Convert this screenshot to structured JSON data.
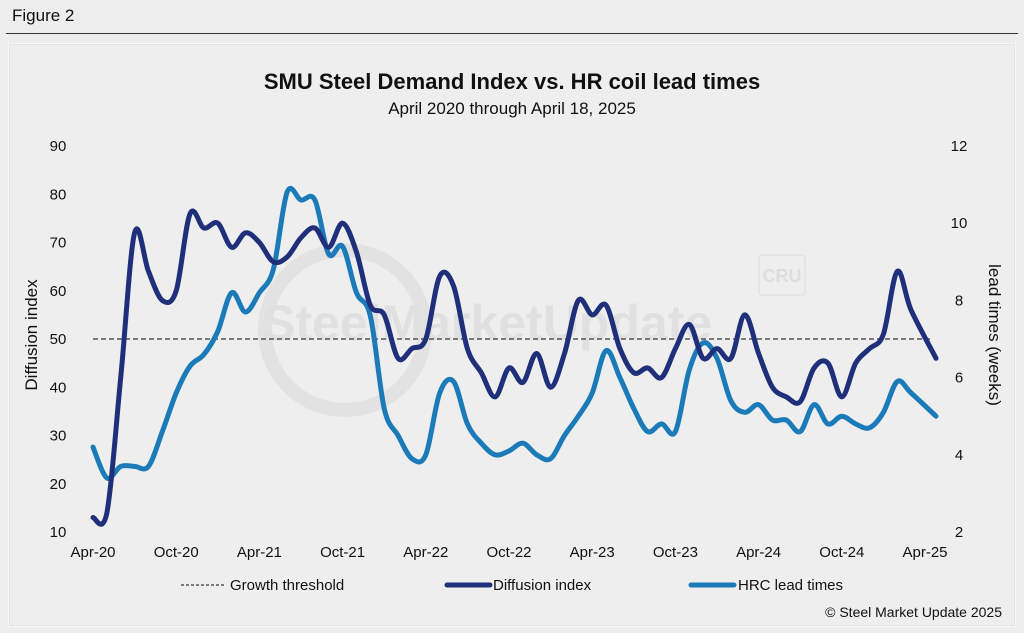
{
  "figure_label": "Figure 2",
  "copyright": "© Steel Market Update 2025",
  "watermark": {
    "text": "SteelMarketUpdate",
    "badge": "CRU"
  },
  "colors": {
    "diffusion": "#1f2f7a",
    "lead": "#1b7ab8",
    "threshold": "#555555"
  },
  "chart_data": {
    "type": "line",
    "title": "SMU Steel Demand Index vs. HR coil lead times",
    "subtitle": "April 2020 through April 18, 2025",
    "ylabel": "Diffusion index",
    "y2label": "lead times (weeks)",
    "ylim": [
      10,
      90
    ],
    "y2lim": [
      2,
      12
    ],
    "yticks": [
      "10",
      "20",
      "30",
      "40",
      "50",
      "60",
      "70",
      "80",
      "90"
    ],
    "y2ticks": [
      "2",
      "4",
      "6",
      "8",
      "10",
      "12"
    ],
    "xtick_labels": [
      "Apr-20",
      "Oct-20",
      "Apr-21",
      "Oct-21",
      "Apr-22",
      "Oct-22",
      "Apr-23",
      "Oct-23",
      "Apr-24",
      "Oct-24",
      "Apr-25"
    ],
    "x_months": [
      "Apr-20",
      "May-20",
      "Jun-20",
      "Jul-20",
      "Aug-20",
      "Sep-20",
      "Oct-20",
      "Nov-20",
      "Dec-20",
      "Jan-21",
      "Feb-21",
      "Mar-21",
      "Apr-21",
      "May-21",
      "Jun-21",
      "Jul-21",
      "Aug-21",
      "Sep-21",
      "Oct-21",
      "Nov-21",
      "Dec-21",
      "Jan-22",
      "Feb-22",
      "Mar-22",
      "Apr-22",
      "May-22",
      "Jun-22",
      "Jul-22",
      "Aug-22",
      "Sep-22",
      "Oct-22",
      "Nov-22",
      "Dec-22",
      "Jan-23",
      "Feb-23",
      "Mar-23",
      "Apr-23",
      "May-23",
      "Jun-23",
      "Jul-23",
      "Aug-23",
      "Sep-23",
      "Oct-23",
      "Nov-23",
      "Dec-23",
      "Jan-24",
      "Feb-24",
      "Mar-24",
      "Apr-24",
      "May-24",
      "Jun-24",
      "Jul-24",
      "Aug-24",
      "Sep-24",
      "Oct-24",
      "Nov-24",
      "Dec-24",
      "Jan-25",
      "Feb-25",
      "Mar-25",
      "Apr-25"
    ],
    "threshold": {
      "name": "Growth threshold",
      "value": 50
    },
    "series": [
      {
        "name": "Diffusion index",
        "axis": "left",
        "values": [
          13,
          14,
          42,
          72,
          64,
          58,
          60,
          76,
          73,
          74,
          69,
          72,
          70,
          66,
          67,
          71,
          73,
          69,
          74,
          68,
          57,
          55,
          46,
          48,
          50,
          63,
          61,
          48,
          43,
          38,
          44,
          41,
          47,
          40,
          47,
          58,
          55,
          57,
          48,
          43,
          44,
          42,
          48,
          53,
          46,
          48,
          46,
          55,
          47,
          40,
          38,
          37,
          44,
          45,
          38,
          45,
          48,
          51,
          64,
          56,
          46
        ]
      },
      {
        "name": "HRC lead times",
        "axis": "right",
        "values": [
          4.2,
          3.4,
          3.7,
          3.7,
          3.7,
          4.6,
          5.6,
          6.3,
          6.6,
          7.2,
          8.2,
          7.7,
          8.2,
          8.8,
          10.8,
          10.6,
          10.6,
          9.2,
          9.4,
          8.2,
          7.6,
          5.2,
          4.5,
          3.9,
          4.0,
          5.6,
          5.9,
          4.8,
          4.3,
          4.0,
          4.1,
          4.3,
          4.0,
          3.9,
          4.5,
          5.0,
          5.6,
          6.7,
          6.0,
          5.2,
          4.6,
          4.8,
          4.6,
          6.2,
          6.9,
          6.5,
          5.4,
          5.1,
          5.3,
          4.9,
          4.9,
          4.6,
          5.3,
          4.8,
          5.0,
          4.8,
          4.7,
          5.1,
          5.9,
          5.6,
          5.0
        ]
      }
    ],
    "legend": [
      "Growth threshold",
      "Diffusion index",
      "HRC lead times"
    ],
    "legend_position": "bottom",
    "grid": false
  }
}
